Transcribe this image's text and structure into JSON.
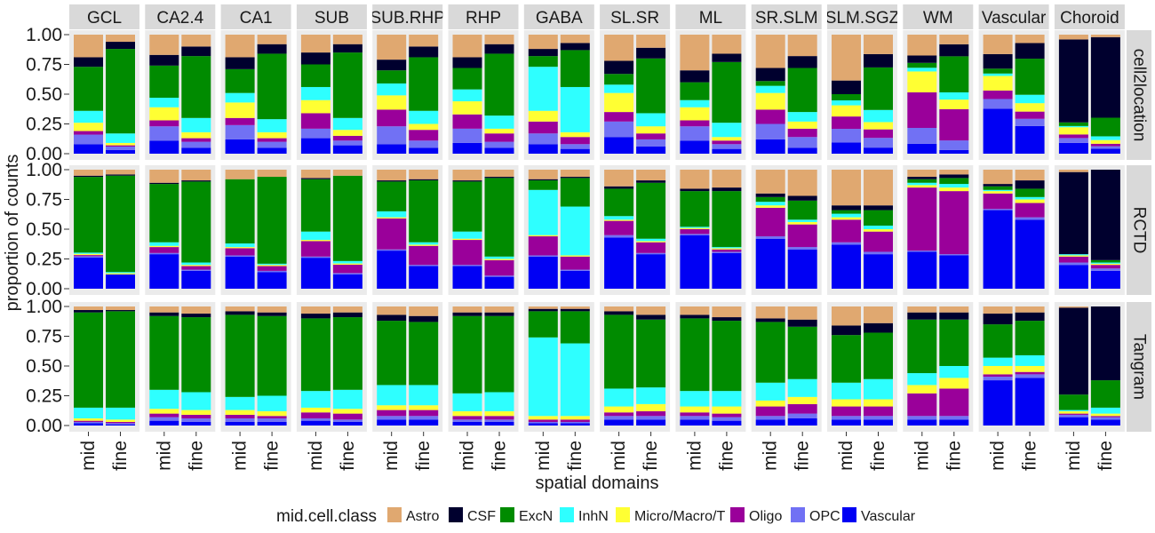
{
  "chart_data": {
    "type": "bar",
    "stacked": true,
    "xlabel": "spatial domains",
    "ylabel": "proportion of counts",
    "ylim": [
      0,
      1
    ],
    "yticks": [
      "0.00",
      "0.25",
      "0.50",
      "0.75",
      "1.00"
    ],
    "categories": [
      "mid",
      "fine"
    ],
    "legend": {
      "title": "mid.cell.class",
      "position": "bottom",
      "entries": [
        "Astro",
        "CSF",
        "ExcN",
        "InhN",
        "Micro/Macro/T",
        "Oligo",
        "OPC",
        "Vascular"
      ]
    },
    "series_order_bottom_to_top": [
      "Vascular",
      "OPC",
      "Oligo",
      "Micro/Macro/T",
      "InhN",
      "ExcN",
      "CSF",
      "Astro"
    ],
    "colors": {
      "Astro": "#E0A870",
      "CSF": "#00002E",
      "ExcN": "#008B00",
      "InhN": "#2EFFFF",
      "Micro/Macro/T": "#FFFF33",
      "Oligo": "#9A009A",
      "OPC": "#7171F4",
      "Vascular": "#0000F4"
    },
    "columns": [
      "GCL",
      "CA2.4",
      "CA1",
      "SUB",
      "SUB.RHP",
      "RHP",
      "GABA",
      "SL.SR",
      "ML",
      "SR.SLM",
      "SLM.SGZ",
      "WM",
      "Vascular",
      "Choroid"
    ],
    "rows": [
      "cell2location",
      "RCTD",
      "Tangram"
    ],
    "panels": {
      "cell2location": {
        "GCL": {
          "mid": [
            0.08,
            0.08,
            0.03,
            0.07,
            0.1,
            0.37,
            0.08,
            0.19
          ],
          "fine": [
            0.03,
            0.03,
            0.01,
            0.02,
            0.08,
            0.71,
            0.06,
            0.06
          ]
        },
        "CA2.4": {
          "mid": [
            0.11,
            0.12,
            0.05,
            0.11,
            0.08,
            0.27,
            0.09,
            0.17
          ],
          "fine": [
            0.05,
            0.05,
            0.03,
            0.05,
            0.12,
            0.52,
            0.08,
            0.1
          ]
        },
        "CA1": {
          "mid": [
            0.12,
            0.12,
            0.06,
            0.13,
            0.08,
            0.2,
            0.1,
            0.19
          ],
          "fine": [
            0.05,
            0.05,
            0.03,
            0.05,
            0.11,
            0.55,
            0.08,
            0.08
          ]
        },
        "SUB": {
          "mid": [
            0.13,
            0.08,
            0.13,
            0.11,
            0.11,
            0.19,
            0.1,
            0.15
          ],
          "fine": [
            0.07,
            0.04,
            0.04,
            0.05,
            0.1,
            0.55,
            0.07,
            0.08
          ]
        },
        "SUB.RHP": {
          "mid": [
            0.08,
            0.15,
            0.14,
            0.12,
            0.1,
            0.11,
            0.09,
            0.21
          ],
          "fine": [
            0.05,
            0.06,
            0.09,
            0.05,
            0.11,
            0.45,
            0.09,
            0.1
          ]
        },
        "RHP": {
          "mid": [
            0.09,
            0.12,
            0.12,
            0.11,
            0.1,
            0.18,
            0.09,
            0.19
          ],
          "fine": [
            0.05,
            0.05,
            0.07,
            0.04,
            0.11,
            0.52,
            0.08,
            0.08
          ]
        },
        "GABA": {
          "mid": [
            0.08,
            0.09,
            0.1,
            0.09,
            0.37,
            0.09,
            0.06,
            0.12
          ],
          "fine": [
            0.04,
            0.04,
            0.06,
            0.04,
            0.38,
            0.31,
            0.06,
            0.07
          ]
        },
        "SL.SR": {
          "mid": [
            0.14,
            0.13,
            0.08,
            0.16,
            0.07,
            0.09,
            0.11,
            0.22
          ],
          "fine": [
            0.06,
            0.06,
            0.05,
            0.06,
            0.11,
            0.46,
            0.09,
            0.11
          ]
        },
        "ML": {
          "mid": [
            0.11,
            0.12,
            0.05,
            0.11,
            0.06,
            0.15,
            0.1,
            0.3
          ],
          "fine": [
            0.04,
            0.04,
            0.03,
            0.03,
            0.12,
            0.51,
            0.07,
            0.16
          ]
        },
        "SR.SLM": {
          "mid": [
            0.12,
            0.13,
            0.12,
            0.14,
            0.06,
            0.04,
            0.11,
            0.28
          ],
          "fine": [
            0.05,
            0.09,
            0.07,
            0.06,
            0.08,
            0.37,
            0.1,
            0.18
          ]
        },
        "SLM.SGZ": {
          "mid": [
            0.09,
            0.11,
            0.1,
            0.09,
            0.04,
            0.05,
            0.11,
            0.37
          ],
          "fine": [
            0.05,
            0.08,
            0.07,
            0.06,
            0.1,
            0.35,
            0.11,
            0.16
          ]
        },
        "WM": {
          "mid": [
            0.08,
            0.13,
            0.29,
            0.17,
            0.03,
            0.04,
            0.06,
            0.17
          ],
          "fine": [
            0.03,
            0.08,
            0.26,
            0.08,
            0.06,
            0.3,
            0.1,
            0.08
          ]
        },
        "Vascular": {
          "mid": [
            0.37,
            0.08,
            0.07,
            0.12,
            0.02,
            0.04,
            0.12,
            0.16
          ],
          "fine": [
            0.23,
            0.06,
            0.06,
            0.07,
            0.07,
            0.3,
            0.13,
            0.07
          ]
        },
        "Choroid": {
          "mid": [
            0.09,
            0.04,
            0.03,
            0.06,
            0.01,
            0.03,
            0.69,
            0.04
          ],
          "fine": [
            0.04,
            0.02,
            0.02,
            0.03,
            0.03,
            0.15,
            0.65,
            0.02
          ]
        }
      },
      "RCTD": {
        "GCL": {
          "mid": [
            0.26,
            0.01,
            0.01,
            0.01,
            0.01,
            0.63,
            0.01,
            0.05
          ],
          "fine": [
            0.12,
            0.0,
            0.0,
            0.01,
            0.01,
            0.81,
            0.01,
            0.04
          ]
        },
        "CA2.4": {
          "mid": [
            0.29,
            0.01,
            0.05,
            0.01,
            0.03,
            0.49,
            0.01,
            0.11
          ],
          "fine": [
            0.15,
            0.01,
            0.03,
            0.01,
            0.02,
            0.68,
            0.01,
            0.09
          ]
        },
        "CA1": {
          "mid": [
            0.27,
            0.01,
            0.06,
            0.01,
            0.03,
            0.54,
            0.0,
            0.08
          ],
          "fine": [
            0.14,
            0.01,
            0.04,
            0.01,
            0.01,
            0.73,
            0.0,
            0.06
          ]
        },
        "SUB": {
          "mid": [
            0.26,
            0.01,
            0.13,
            0.01,
            0.07,
            0.44,
            0.01,
            0.07
          ],
          "fine": [
            0.12,
            0.01,
            0.07,
            0.01,
            0.02,
            0.71,
            0.0,
            0.05
          ]
        },
        "SUB.RHP": {
          "mid": [
            0.32,
            0.01,
            0.26,
            0.01,
            0.05,
            0.25,
            0.01,
            0.09
          ],
          "fine": [
            0.19,
            0.01,
            0.16,
            0.01,
            0.02,
            0.52,
            0.01,
            0.08
          ]
        },
        "RHP": {
          "mid": [
            0.19,
            0.01,
            0.21,
            0.01,
            0.06,
            0.42,
            0.01,
            0.09
          ],
          "fine": [
            0.1,
            0.01,
            0.13,
            0.01,
            0.02,
            0.66,
            0.01,
            0.06
          ]
        },
        "GABA": {
          "mid": [
            0.27,
            0.01,
            0.16,
            0.01,
            0.38,
            0.08,
            0.01,
            0.08
          ],
          "fine": [
            0.15,
            0.01,
            0.11,
            0.01,
            0.41,
            0.24,
            0.01,
            0.06
          ]
        },
        "SL.SR": {
          "mid": [
            0.43,
            0.02,
            0.12,
            0.01,
            0.03,
            0.23,
            0.02,
            0.14
          ],
          "fine": [
            0.29,
            0.01,
            0.09,
            0.01,
            0.02,
            0.47,
            0.02,
            0.09
          ]
        },
        "ML": {
          "mid": [
            0.45,
            0.01,
            0.04,
            0.01,
            0.01,
            0.3,
            0.02,
            0.16
          ],
          "fine": [
            0.3,
            0.01,
            0.02,
            0.01,
            0.01,
            0.47,
            0.03,
            0.15
          ]
        },
        "SR.SLM": {
          "mid": [
            0.42,
            0.02,
            0.24,
            0.02,
            0.03,
            0.04,
            0.03,
            0.2
          ],
          "fine": [
            0.33,
            0.02,
            0.19,
            0.02,
            0.02,
            0.16,
            0.04,
            0.22
          ]
        },
        "SLM.SGZ": {
          "mid": [
            0.37,
            0.02,
            0.19,
            0.02,
            0.03,
            0.03,
            0.04,
            0.3
          ],
          "fine": [
            0.29,
            0.02,
            0.17,
            0.02,
            0.03,
            0.13,
            0.04,
            0.3
          ]
        },
        "WM": {
          "mid": [
            0.31,
            0.01,
            0.53,
            0.02,
            0.02,
            0.03,
            0.02,
            0.06
          ],
          "fine": [
            0.28,
            0.01,
            0.53,
            0.03,
            0.03,
            0.05,
            0.03,
            0.04
          ]
        },
        "Vascular": {
          "mid": [
            0.66,
            0.01,
            0.13,
            0.02,
            0.01,
            0.03,
            0.02,
            0.12
          ],
          "fine": [
            0.58,
            0.02,
            0.12,
            0.03,
            0.02,
            0.07,
            0.07,
            0.09
          ]
        },
        "Choroid": {
          "mid": [
            0.2,
            0.02,
            0.05,
            0.01,
            0.01,
            0.0,
            0.69,
            0.02
          ],
          "fine": [
            0.15,
            0.02,
            0.03,
            0.01,
            0.01,
            0.02,
            0.76,
            0.0
          ]
        }
      },
      "Tangram": {
        "GCL": {
          "mid": [
            0.02,
            0.01,
            0.01,
            0.02,
            0.09,
            0.8,
            0.02,
            0.03
          ],
          "fine": [
            0.01,
            0.01,
            0.01,
            0.02,
            0.1,
            0.81,
            0.01,
            0.03
          ]
        },
        "CA2.4": {
          "mid": [
            0.04,
            0.03,
            0.03,
            0.04,
            0.16,
            0.62,
            0.03,
            0.05
          ],
          "fine": [
            0.03,
            0.03,
            0.03,
            0.04,
            0.15,
            0.63,
            0.03,
            0.06
          ]
        },
        "CA1": {
          "mid": [
            0.03,
            0.03,
            0.03,
            0.04,
            0.11,
            0.69,
            0.03,
            0.04
          ],
          "fine": [
            0.03,
            0.03,
            0.02,
            0.04,
            0.13,
            0.67,
            0.03,
            0.05
          ]
        },
        "SUB": {
          "mid": [
            0.04,
            0.02,
            0.05,
            0.04,
            0.14,
            0.61,
            0.04,
            0.06
          ],
          "fine": [
            0.03,
            0.02,
            0.05,
            0.04,
            0.16,
            0.61,
            0.04,
            0.05
          ]
        },
        "SUB.RHP": {
          "mid": [
            0.05,
            0.03,
            0.05,
            0.04,
            0.17,
            0.54,
            0.05,
            0.07
          ],
          "fine": [
            0.05,
            0.03,
            0.05,
            0.04,
            0.17,
            0.53,
            0.05,
            0.08
          ]
        },
        "RHP": {
          "mid": [
            0.03,
            0.02,
            0.03,
            0.04,
            0.15,
            0.65,
            0.03,
            0.05
          ],
          "fine": [
            0.03,
            0.02,
            0.03,
            0.04,
            0.16,
            0.64,
            0.03,
            0.05
          ]
        },
        "GABA": {
          "mid": [
            0.02,
            0.01,
            0.02,
            0.03,
            0.66,
            0.22,
            0.02,
            0.02
          ],
          "fine": [
            0.02,
            0.01,
            0.02,
            0.03,
            0.61,
            0.27,
            0.02,
            0.02
          ]
        },
        "SL.SR": {
          "mid": [
            0.05,
            0.03,
            0.03,
            0.05,
            0.15,
            0.62,
            0.03,
            0.04
          ],
          "fine": [
            0.05,
            0.03,
            0.04,
            0.06,
            0.14,
            0.57,
            0.04,
            0.07
          ]
        },
        "ML": {
          "mid": [
            0.05,
            0.03,
            0.03,
            0.05,
            0.13,
            0.61,
            0.03,
            0.07
          ],
          "fine": [
            0.04,
            0.03,
            0.03,
            0.06,
            0.13,
            0.59,
            0.03,
            0.09
          ]
        },
        "SR.SLM": {
          "mid": [
            0.05,
            0.03,
            0.08,
            0.05,
            0.15,
            0.51,
            0.03,
            0.1
          ],
          "fine": [
            0.06,
            0.04,
            0.08,
            0.06,
            0.15,
            0.44,
            0.06,
            0.11
          ]
        },
        "SLM.SGZ": {
          "mid": [
            0.05,
            0.03,
            0.08,
            0.06,
            0.14,
            0.4,
            0.08,
            0.16
          ],
          "fine": [
            0.05,
            0.03,
            0.08,
            0.06,
            0.17,
            0.39,
            0.08,
            0.14
          ]
        },
        "WM": {
          "mid": [
            0.05,
            0.03,
            0.19,
            0.07,
            0.1,
            0.45,
            0.06,
            0.05
          ],
          "fine": [
            0.05,
            0.03,
            0.23,
            0.09,
            0.1,
            0.39,
            0.06,
            0.05
          ]
        },
        "Vascular": {
          "mid": [
            0.38,
            0.03,
            0.02,
            0.07,
            0.07,
            0.28,
            0.09,
            0.06
          ],
          "fine": [
            0.4,
            0.03,
            0.02,
            0.05,
            0.09,
            0.29,
            0.07,
            0.05
          ]
        },
        "Choroid": {
          "mid": [
            0.07,
            0.02,
            0.01,
            0.02,
            0.01,
            0.13,
            0.73,
            0.01
          ],
          "fine": [
            0.05,
            0.02,
            0.01,
            0.02,
            0.05,
            0.23,
            0.62,
            0.0
          ]
        }
      }
    }
  }
}
